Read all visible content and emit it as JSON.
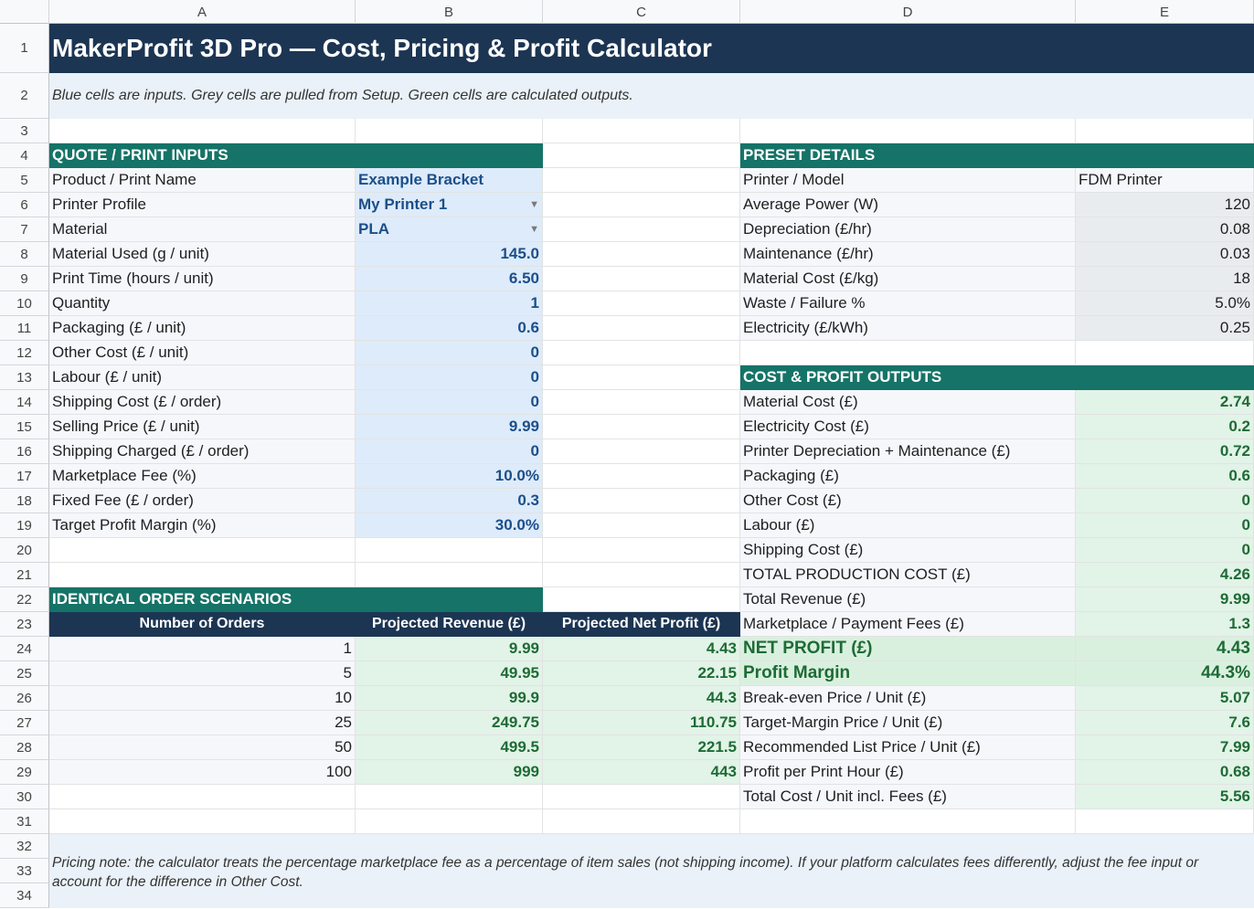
{
  "columns": [
    "A",
    "B",
    "C",
    "D",
    "E"
  ],
  "rows": [
    "1",
    "2",
    "3",
    "4",
    "5",
    "6",
    "7",
    "8",
    "9",
    "10",
    "11",
    "12",
    "13",
    "14",
    "15",
    "16",
    "17",
    "18",
    "19",
    "20",
    "21",
    "22",
    "23",
    "24",
    "25",
    "26",
    "27",
    "28",
    "29",
    "30",
    "31",
    "32",
    "33",
    "34"
  ],
  "title": "MakerProfit 3D Pro — Cost, Pricing & Profit Calculator",
  "subtitle": "Blue cells are inputs. Grey cells are pulled from Setup. Green cells are calculated outputs.",
  "inputs": {
    "header": "QUOTE / PRINT INPUTS",
    "rows": [
      {
        "label": "Product / Print Name",
        "value": "Example Bracket"
      },
      {
        "label": "Printer Profile",
        "value": "My Printer 1"
      },
      {
        "label": "Material",
        "value": "PLA"
      },
      {
        "label": "Material Used (g / unit)",
        "value": "145.0"
      },
      {
        "label": "Print Time (hours / unit)",
        "value": "6.50"
      },
      {
        "label": "Quantity",
        "value": "1"
      },
      {
        "label": "Packaging (£ / unit)",
        "value": "0.6"
      },
      {
        "label": "Other Cost (£ / unit)",
        "value": "0"
      },
      {
        "label": "Labour (£ / unit)",
        "value": "0"
      },
      {
        "label": "Shipping Cost (£ / order)",
        "value": "0"
      },
      {
        "label": "Selling Price (£ / unit)",
        "value": "9.99"
      },
      {
        "label": "Shipping Charged (£ / order)",
        "value": "0"
      },
      {
        "label": "Marketplace Fee (%)",
        "value": "10.0%"
      },
      {
        "label": "Fixed Fee (£ / order)",
        "value": "0.3"
      },
      {
        "label": "Target Profit Margin (%)",
        "value": "30.0%"
      }
    ]
  },
  "preset": {
    "header": "PRESET DETAILS",
    "rows": [
      {
        "label": "Printer / Model",
        "value": "FDM Printer"
      },
      {
        "label": "Average Power (W)",
        "value": "120"
      },
      {
        "label": "Depreciation (£/hr)",
        "value": "0.08"
      },
      {
        "label": "Maintenance (£/hr)",
        "value": "0.03"
      },
      {
        "label": "Material Cost (£/kg)",
        "value": "18"
      },
      {
        "label": "Waste / Failure %",
        "value": "5.0%"
      },
      {
        "label": "Electricity (£/kWh)",
        "value": "0.25"
      }
    ]
  },
  "outputs": {
    "header": "COST & PROFIT OUTPUTS",
    "rows": [
      {
        "label": "Material Cost (£)",
        "value": "2.74"
      },
      {
        "label": "Electricity Cost (£)",
        "value": "0.2"
      },
      {
        "label": "Printer Depreciation + Maintenance (£)",
        "value": "0.72"
      },
      {
        "label": "Packaging (£)",
        "value": "0.6"
      },
      {
        "label": "Other Cost (£)",
        "value": "0"
      },
      {
        "label": "Labour (£)",
        "value": "0"
      },
      {
        "label": "Shipping Cost (£)",
        "value": "0"
      },
      {
        "label": "TOTAL PRODUCTION COST (£)",
        "value": "4.26"
      },
      {
        "label": "Total Revenue (£)",
        "value": "9.99"
      },
      {
        "label": "Marketplace / Payment Fees (£)",
        "value": "1.3"
      },
      {
        "label": "NET PROFIT (£)",
        "value": "4.43"
      },
      {
        "label": "Profit Margin",
        "value": "44.3%"
      },
      {
        "label": "Break-even Price / Unit (£)",
        "value": "5.07"
      },
      {
        "label": "Target-Margin Price / Unit (£)",
        "value": "7.6"
      },
      {
        "label": "Recommended List Price / Unit (£)",
        "value": "7.99"
      },
      {
        "label": "Profit per Print Hour (£)",
        "value": "0.68"
      },
      {
        "label": "Total Cost / Unit incl. Fees (£)",
        "value": "5.56"
      }
    ]
  },
  "scenarios": {
    "header": "IDENTICAL ORDER SCENARIOS",
    "columns": [
      "Number of Orders",
      "Projected Revenue (£)",
      "Projected Net Profit (£)"
    ],
    "rows": [
      [
        "1",
        "9.99",
        "4.43"
      ],
      [
        "5",
        "49.95",
        "22.15"
      ],
      [
        "10",
        "99.9",
        "44.3"
      ],
      [
        "25",
        "249.75",
        "110.75"
      ],
      [
        "50",
        "499.5",
        "221.5"
      ],
      [
        "100",
        "999",
        "443"
      ]
    ]
  },
  "note": "Pricing note: the calculator treats the percentage marketplace fee as a percentage of item sales (not shipping income). If your platform calculates fees differently, adjust the fee input or account for the difference in Other Cost.",
  "colors": {
    "title_bg": "#1c3553",
    "section_bg": "#157367",
    "input_bg": "#deebfa",
    "setup_bg": "#e9ecef",
    "output_bg": "#e2f3e7"
  }
}
